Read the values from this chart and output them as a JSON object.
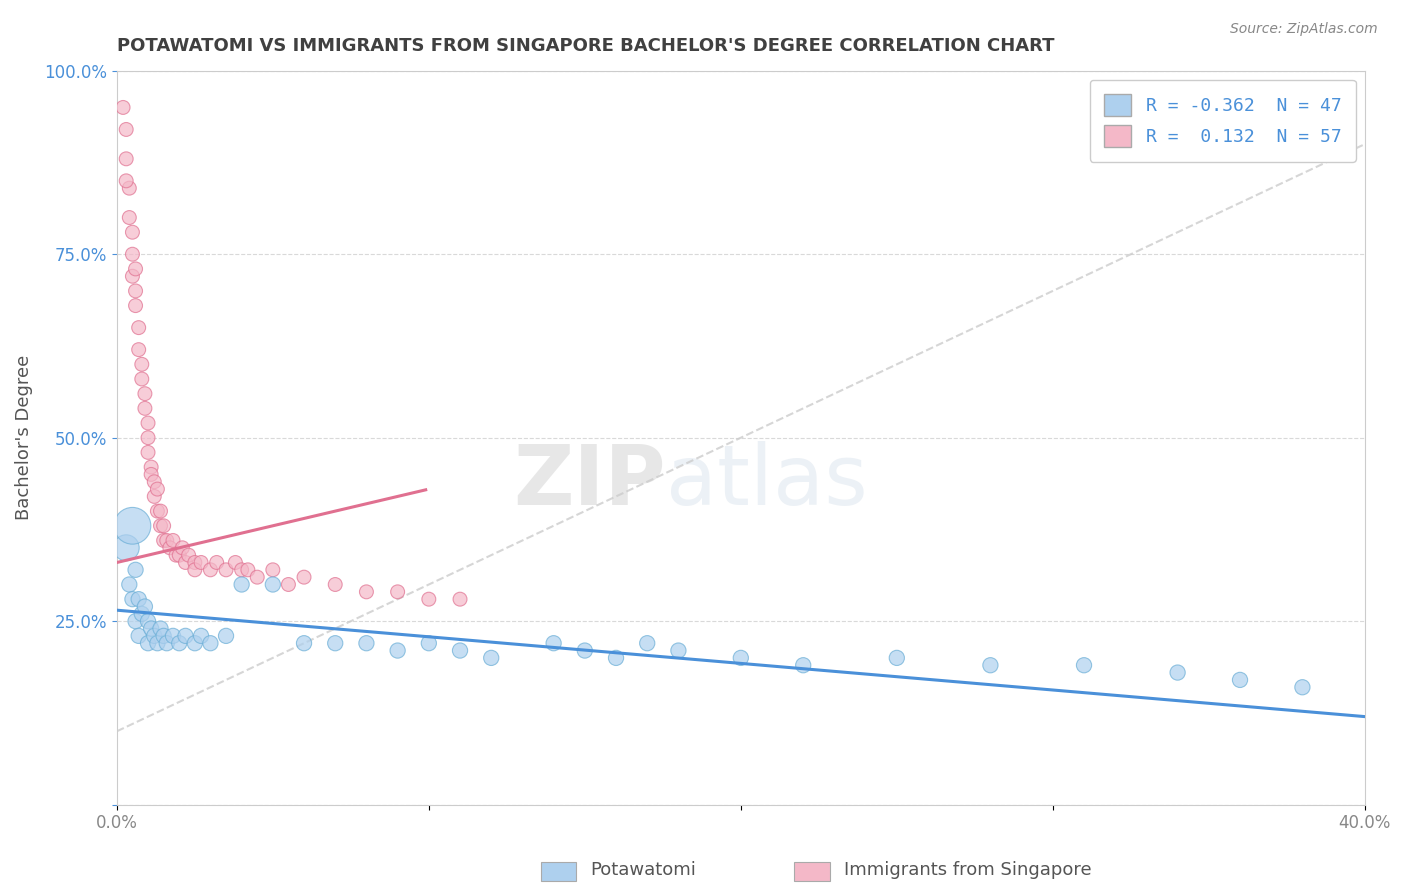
{
  "title": "POTAWATOMI VS IMMIGRANTS FROM SINGAPORE BACHELOR'S DEGREE CORRELATION CHART",
  "source": "Source: ZipAtlas.com",
  "ylabel": "Bachelor's Degree",
  "xlim": [
    0.0,
    0.4
  ],
  "ylim": [
    0.0,
    1.0
  ],
  "xticks": [
    0.0,
    0.1,
    0.2,
    0.3,
    0.4
  ],
  "xtick_labels_outer": [
    "0.0%",
    "",
    "",
    "",
    "40.0%"
  ],
  "yticks": [
    0.0,
    0.25,
    0.5,
    0.75,
    1.0
  ],
  "ytick_labels": [
    "",
    "25.0%",
    "50.0%",
    "75.0%",
    "100.0%"
  ],
  "legend_r1": "R = -0.362  N = 47",
  "legend_r2": "R =  0.132  N = 57",
  "series1_name": "Potawatomi",
  "series1_color": "#aed0ee",
  "series1_edge": "#6aaed6",
  "series2_name": "Immigrants from Singapore",
  "series2_color": "#f4b8c8",
  "series2_edge": "#e07090",
  "watermark_zip": "ZIP",
  "watermark_atlas": "atlas",
  "background_color": "#ffffff",
  "grid_color": "#d0d0d0",
  "title_color": "#404040",
  "trend1_color": "#4a90d9",
  "trend2_color": "#e07090",
  "right_tick_color": "#4a90d9",
  "bottom_tick_color": "#888888"
}
